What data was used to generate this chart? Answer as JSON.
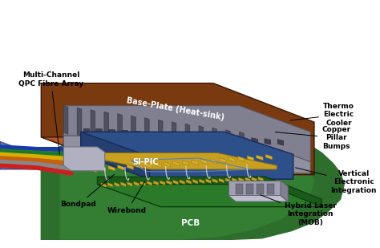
{
  "title": "",
  "background_color": "#ffffff",
  "labels": {
    "wirebond": "Wirebond",
    "bondpad": "Bondpad",
    "pcb": "PCB",
    "hybrid_laser": "Hybrid Laser\nIntegration\n(MOB)",
    "vertical_electronic": "Vertical\nElectronic\nIntegration",
    "si_pic": "SI-PIC",
    "copper_pillar": "Copper\nPillar\nBumps",
    "thermo_electric": "Thermo\nElectric\nCooler",
    "base_plate": "Base-Plate (Heat-sink)",
    "multi_channel": "Multi-Channel\nQPC Fibre Array"
  },
  "colors": {
    "pcb_green": "#2d6e2d",
    "pcb_green_light": "#3a8f3a",
    "si_pic_blue": "#3a5f9f",
    "si_pic_blue_dark": "#2d508a",
    "si_pic_blue_left": "#243f70",
    "tec_gray_top": "#9090a0",
    "tec_gray_front": "#808090",
    "tec_fin": "#505060",
    "base_brown_front": "#7a3a10",
    "base_brown_top": "#b05828",
    "copper_bumps": "#404055",
    "gold_bond": "#c8a020",
    "gold_bond_light": "#d4b030",
    "pcb_strip_dark": "#1a5a1a",
    "pcb_strip_light": "#2a7a2a",
    "mob_face": "#a0a0b0",
    "mob_top": "#c0c0d0",
    "mob_right": "#808090",
    "mob_detail": "#707080",
    "fiber_blue": "#1a3aaa",
    "fiber_green": "#207830",
    "fiber_yellow": "#d4b000",
    "fiber_orange": "#c86010",
    "fiber_gray": "#888888",
    "fiber_red": "#cc2020",
    "fiber_sheath": "#2244aa",
    "connector": "#b0b0c0",
    "wire_color": "#d4d4d4",
    "inner_box": "#5a7fbb"
  }
}
